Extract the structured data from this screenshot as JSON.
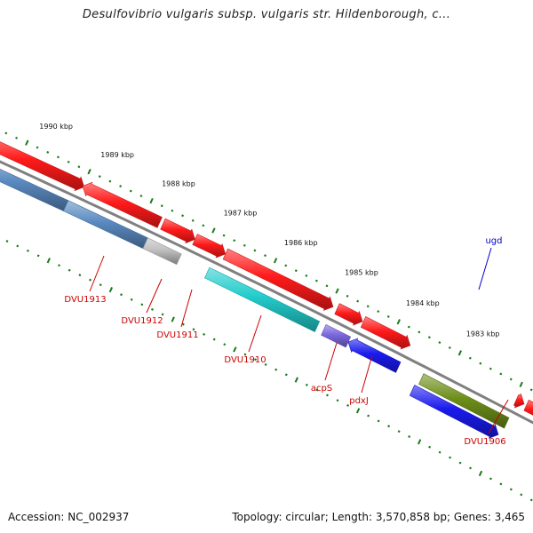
{
  "title": "Desulfovibrio vulgaris subsp. vulgaris str. Hildenborough, c...",
  "footer": {
    "accession": "Accession: NC_002937",
    "summary": "Topology: circular; Length: 3,570,858 bp; Genes: 3,465"
  },
  "colors": {
    "backbone": "#808080",
    "tick": "#1a7a1a",
    "label_red": "#cc0000",
    "label_blue": "#0000cc"
  },
  "kbp_labels": [
    "1990 kbp",
    "1989 kbp",
    "1988 kbp",
    "1987 kbp",
    "1986 kbp",
    "1985 kbp",
    "1984 kbp",
    "1983 kbp"
  ],
  "genes": [
    {
      "name": "DVU1913",
      "color": "#5a8ac0",
      "strand": "-"
    },
    {
      "name": "DVU1912",
      "color": "#c0c0c0",
      "strand": "-"
    },
    {
      "name": "DVU1911",
      "color": "#ff1a1a",
      "strand": "+"
    },
    {
      "name": "DVU1910",
      "color": "#22cccc",
      "strand": "-"
    },
    {
      "name": "acpS",
      "color": "#7b68dd",
      "strand": "-"
    },
    {
      "name": "pdxJ",
      "color": "#1a1aee",
      "strand": "-"
    },
    {
      "name": "ugd",
      "color": "#6e8f1a",
      "strand": "-"
    },
    {
      "name": "DVU1906",
      "color": "#ff1a1a",
      "strand": "+"
    }
  ]
}
